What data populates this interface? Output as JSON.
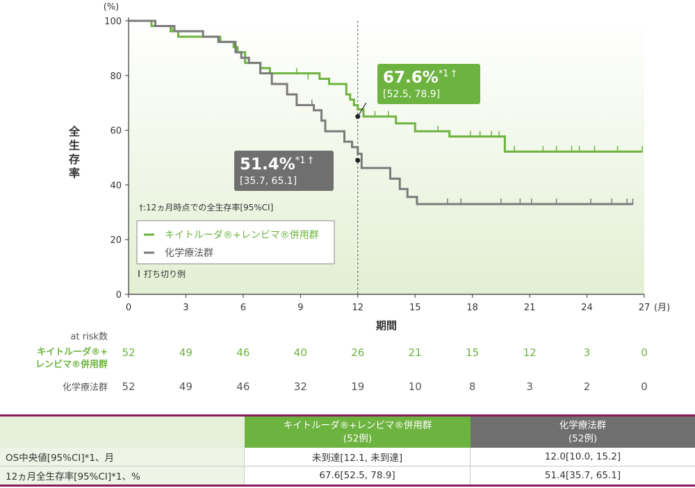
{
  "chart_data": {
    "type": "line",
    "subtype": "kaplan-meier",
    "y_unit": "(%)",
    "ylabel": "全生存率",
    "xlabel": "期間",
    "x_unit": "(月)",
    "xlim": [
      0,
      27
    ],
    "ylim": [
      0,
      100
    ],
    "x_ticks": [
      "0",
      "3",
      "6",
      "9",
      "12",
      "15",
      "18",
      "21",
      "24",
      "27"
    ],
    "y_ticks": [
      "0",
      "20",
      "40",
      "60",
      "80",
      "100"
    ],
    "reference_month": 12,
    "series": [
      {
        "name": "キイトルーダ®+レンビマ®併用群",
        "color": "#6db33f",
        "steps": [
          [
            0,
            100
          ],
          [
            1.2,
            98.1
          ],
          [
            2.2,
            96.2
          ],
          [
            2.6,
            94.2
          ],
          [
            4.8,
            92.3
          ],
          [
            5.5,
            90.4
          ],
          [
            5.7,
            88.5
          ],
          [
            6.1,
            84.6
          ],
          [
            6.9,
            82.7
          ],
          [
            7.4,
            80.8
          ],
          [
            10.0,
            78.8
          ],
          [
            10.5,
            76.9
          ],
          [
            11.4,
            73.1
          ],
          [
            11.6,
            71.2
          ],
          [
            11.8,
            69.2
          ],
          [
            12.0,
            67.6
          ],
          [
            12.3,
            65.0
          ],
          [
            14.0,
            62.5
          ],
          [
            15.0,
            59.6
          ],
          [
            16.8,
            57.7
          ],
          [
            19.7,
            52.2
          ],
          [
            26.9,
            52.2
          ]
        ],
        "censored": [
          [
            2.3,
            96.2
          ],
          [
            8.8,
            80.8
          ],
          [
            9.4,
            78.8
          ],
          [
            12.9,
            65.0
          ],
          [
            13.6,
            65.0
          ],
          [
            16.2,
            59.6
          ],
          [
            17.9,
            57.7
          ],
          [
            18.4,
            57.7
          ],
          [
            19.0,
            57.7
          ],
          [
            19.4,
            57.7
          ],
          [
            20.2,
            52.2
          ],
          [
            21.7,
            52.2
          ],
          [
            22.4,
            52.2
          ],
          [
            23.2,
            52.2
          ],
          [
            23.6,
            52.2
          ],
          [
            24.4,
            52.2
          ],
          [
            25.6,
            52.2
          ],
          [
            26.9,
            52.2
          ]
        ]
      },
      {
        "name": "化学療法群",
        "color": "#7a7a7a",
        "steps": [
          [
            0,
            100
          ],
          [
            1.4,
            98.1
          ],
          [
            2.4,
            96.2
          ],
          [
            3.9,
            94.2
          ],
          [
            4.7,
            92.3
          ],
          [
            5.6,
            88.5
          ],
          [
            5.9,
            86.5
          ],
          [
            6.3,
            84.6
          ],
          [
            6.9,
            80.8
          ],
          [
            7.5,
            76.9
          ],
          [
            8.3,
            73.1
          ],
          [
            8.8,
            69.2
          ],
          [
            9.7,
            67.3
          ],
          [
            10.1,
            63.5
          ],
          [
            10.3,
            59.6
          ],
          [
            11.3,
            55.8
          ],
          [
            11.7,
            53.8
          ],
          [
            12.0,
            51.4
          ],
          [
            12.2,
            46.2
          ],
          [
            13.7,
            42.3
          ],
          [
            14.2,
            38.5
          ],
          [
            14.6,
            35.6
          ],
          [
            15.1,
            33.0
          ],
          [
            26.4,
            33.0
          ]
        ],
        "censored": [
          [
            9.6,
            69.2
          ],
          [
            16.7,
            33.0
          ],
          [
            17.4,
            33.0
          ],
          [
            19.5,
            33.0
          ],
          [
            20.5,
            33.0
          ],
          [
            21.1,
            33.0
          ],
          [
            22.4,
            33.0
          ],
          [
            24.2,
            33.0
          ],
          [
            25.3,
            33.0
          ],
          [
            26.1,
            33.0
          ],
          [
            26.4,
            33.0
          ]
        ]
      }
    ],
    "callouts": [
      {
        "value": "67.6%",
        "sup": "*1 †",
        "ci": "[52.5, 78.9]",
        "x": 12,
        "y": 65.0,
        "color": "#6db33f"
      },
      {
        "value": "51.4%",
        "sup": "*1 †",
        "ci": "[35.7, 65.1]",
        "x": 12,
        "y": 49.0,
        "color": "#6f6f6f"
      }
    ],
    "footnote": "†:12ヵ月時点での全生存率[95%CI]",
    "legend": [
      "キイトルーダ®+レンビマ®併用群",
      "化学療法群"
    ],
    "legend_placement": "lower-left",
    "censor_label": "打ち切り例",
    "at_risk": {
      "title": "at risk数",
      "rows": [
        {
          "label1": "キイトルーダ®+",
          "label2": "レンビマ®併用群",
          "color": "#6db33f",
          "values": [
            "52",
            "49",
            "46",
            "40",
            "26",
            "21",
            "15",
            "12",
            "3",
            "0"
          ]
        },
        {
          "label1": "化学療法群",
          "color": "#555555",
          "values": [
            "52",
            "49",
            "46",
            "32",
            "19",
            "10",
            "8",
            "3",
            "2",
            "0"
          ]
        }
      ]
    }
  },
  "table": {
    "col_green": {
      "line1": "キイトルーダ®+レンビマ®併用群",
      "line2": "(52例)"
    },
    "col_gray": {
      "line1": "化学療法群",
      "line2": "(52例)"
    },
    "rows": [
      {
        "label": "OS中央値[95%CI]*1、月",
        "green": "未到達[12.1, 未到達]",
        "gray": "12.0[10.0, 15.2]"
      },
      {
        "label": "12ヵ月全生存率[95%CI]*1、%",
        "green": "67.6[52.5, 78.9]",
        "gray": "51.4[35.7, 65.1]"
      }
    ]
  }
}
